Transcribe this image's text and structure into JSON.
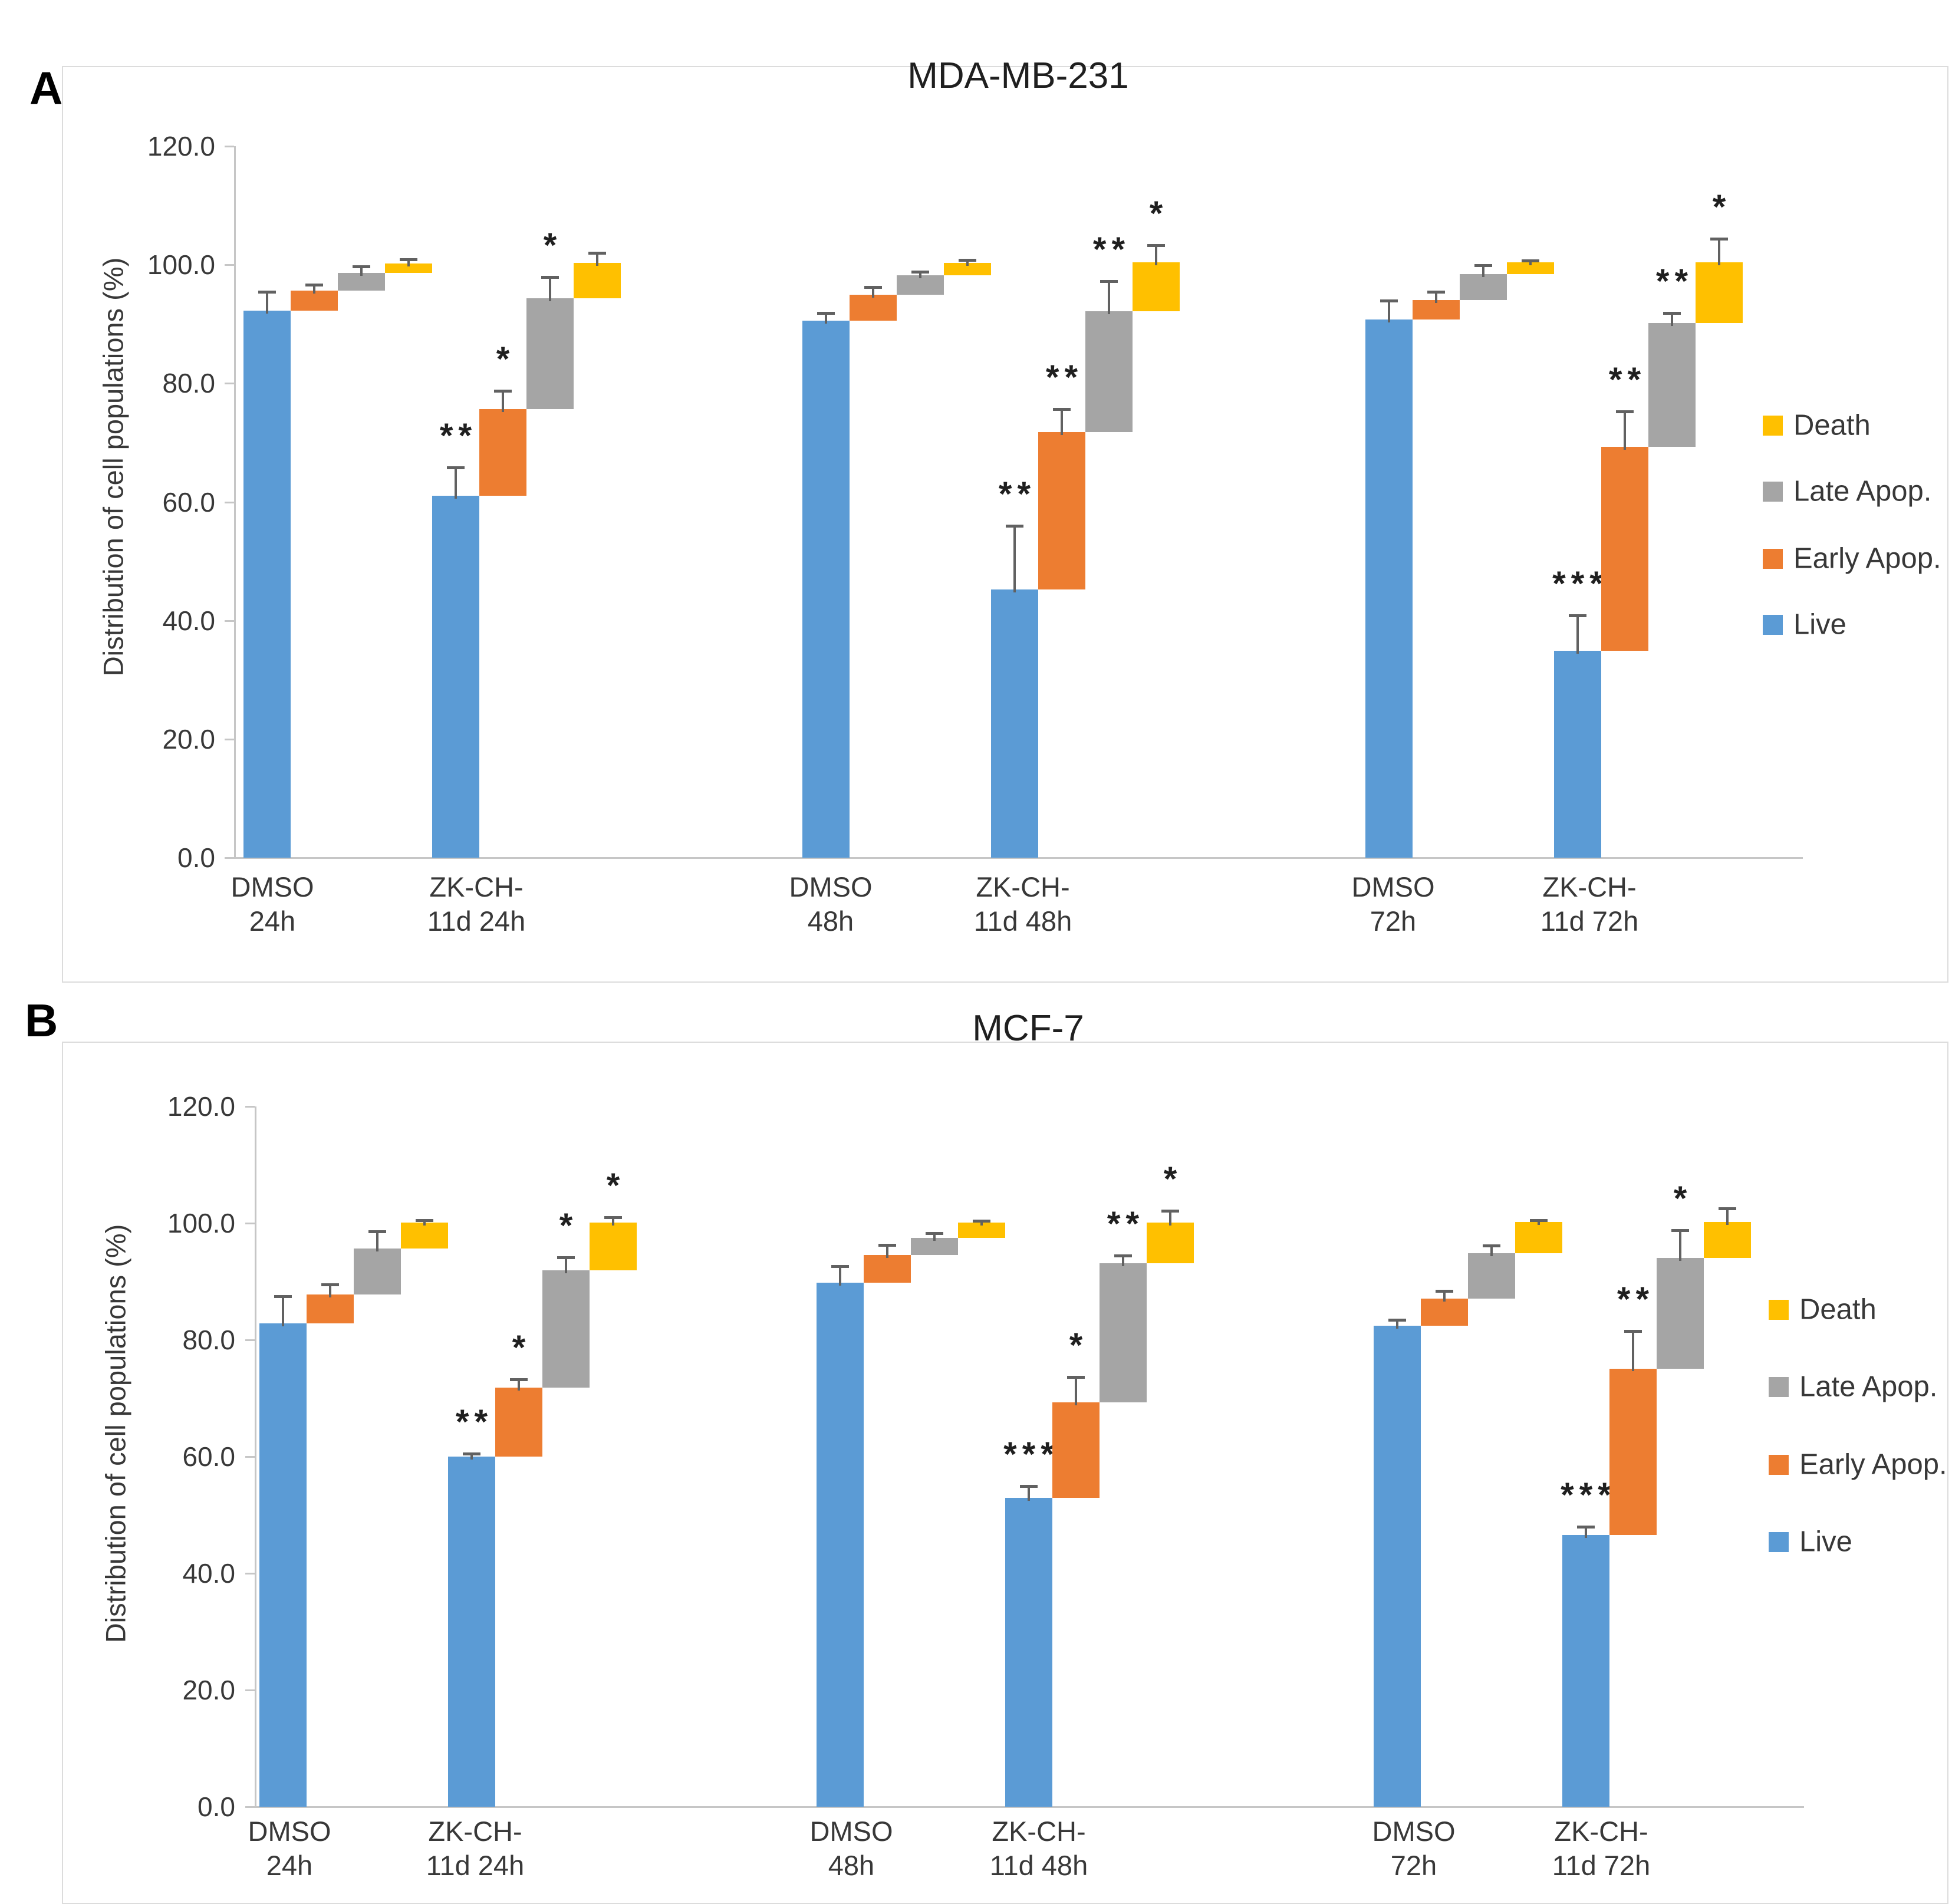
{
  "figure": {
    "panels": [
      {
        "letter": "A"
      },
      {
        "letter": "B"
      }
    ]
  },
  "colors": {
    "live": "#5B9BD5",
    "early_apop": "#ED7D31",
    "late_apop": "#A5A5A5",
    "death": "#FFC000",
    "error_bar": "#616161",
    "axis": "#C6C6C6",
    "text": "#383838",
    "title": "#1F1F1F",
    "panel_border": "#DCDCDC"
  },
  "legend": [
    {
      "label": "Death",
      "color_key": "death"
    },
    {
      "label": "Late Apop.",
      "color_key": "late_apop"
    },
    {
      "label": "Early Apop.",
      "color_key": "early_apop"
    },
    {
      "label": "Live",
      "color_key": "live"
    }
  ],
  "chart_data": [
    {
      "type": "bar",
      "subtype": "waterfall-stacked-segments-with-error-bars",
      "title": "MDA-MB-231",
      "ylabel": "Distribution of cell populations (%)",
      "xlabel": "",
      "ylim": [
        0,
        120
      ],
      "ytick_step": 20,
      "ytick_labels": [
        "0.0",
        "20.0",
        "40.0",
        "60.0",
        "80.0",
        "100.0",
        "120.0"
      ],
      "grid": false,
      "legend_position": "right",
      "categories": [
        [
          "DMSO",
          "24h"
        ],
        [
          "ZK-CH-",
          "11d 24h"
        ],
        [
          "DMSO",
          "48h"
        ],
        [
          "ZK-CH-",
          "11d 48h"
        ],
        [
          "DMSO",
          "72h"
        ],
        [
          "ZK-CH-",
          "11d 72h"
        ]
      ],
      "series": [
        {
          "name": "Live",
          "color_key": "live",
          "tops": [
            92.3,
            61.0,
            90.6,
            45.2,
            90.8,
            34.9
          ],
          "errors": [
            3.3,
            5.0,
            1.5,
            11.0,
            3.4,
            6.2
          ],
          "significance": [
            "",
            "**",
            "",
            "**",
            "",
            "***"
          ]
        },
        {
          "name": "Early Apop.",
          "color_key": "early_apop",
          "tops": [
            95.6,
            75.7,
            94.9,
            71.8,
            94.1,
            69.3
          ],
          "errors": [
            1.2,
            3.2,
            1.5,
            4.1,
            1.5,
            6.2
          ],
          "significance": [
            "",
            "*",
            "",
            "**",
            "",
            "**"
          ]
        },
        {
          "name": "Late Apop.",
          "color_key": "late_apop",
          "tops": [
            98.6,
            94.3,
            98.2,
            92.2,
            98.4,
            90.2
          ],
          "errors": [
            1.3,
            3.8,
            0.8,
            5.2,
            1.7,
            1.9
          ],
          "significance": [
            "",
            "*",
            "",
            "**",
            "",
            "**"
          ]
        },
        {
          "name": "Death",
          "color_key": "death",
          "tops": [
            100.2,
            100.3,
            100.3,
            100.4,
            100.4,
            100.4
          ],
          "errors": [
            0.9,
            1.9,
            0.7,
            3.1,
            0.5,
            4.2
          ],
          "significance": [
            "",
            "",
            "",
            "*",
            "",
            "*"
          ]
        }
      ]
    },
    {
      "type": "bar",
      "subtype": "waterfall-stacked-segments-with-error-bars",
      "title": "MCF-7",
      "ylabel": "Distribution of cell populations (%)",
      "xlabel": "",
      "ylim": [
        0,
        120
      ],
      "ytick_step": 20,
      "ytick_labels": [
        "0.0",
        "20.0",
        "40.0",
        "60.0",
        "80.0",
        "100.0",
        "120.0"
      ],
      "grid": false,
      "legend_position": "right",
      "categories": [
        [
          "DMSO",
          "24h"
        ],
        [
          "ZK-CH-",
          "11d 24h"
        ],
        [
          "DMSO",
          "48h"
        ],
        [
          "ZK-CH-",
          "11d 48h"
        ],
        [
          "DMSO",
          "72h"
        ],
        [
          "ZK-CH-",
          "11d 72h"
        ]
      ],
      "series": [
        {
          "name": "Live",
          "color_key": "live",
          "tops": [
            82.8,
            60.0,
            89.8,
            52.9,
            82.4,
            46.6
          ],
          "errors": [
            4.9,
            0.7,
            3.0,
            2.3,
            1.2,
            1.6
          ],
          "significance": [
            "",
            "**",
            "",
            "***",
            "",
            "***"
          ]
        },
        {
          "name": "Early Apop.",
          "color_key": "early_apop",
          "tops": [
            87.8,
            71.8,
            94.5,
            69.3,
            87.1,
            75.1
          ],
          "errors": [
            1.9,
            1.6,
            2.0,
            4.5,
            1.5,
            6.6
          ],
          "significance": [
            "",
            "*",
            "",
            "*",
            "",
            "**"
          ]
        },
        {
          "name": "Late Apop.",
          "color_key": "late_apop",
          "tops": [
            95.7,
            91.9,
            97.5,
            93.1,
            94.8,
            94.0
          ],
          "errors": [
            3.1,
            2.4,
            1.0,
            1.5,
            1.6,
            5.0
          ],
          "significance": [
            "",
            "*",
            "",
            "**",
            "",
            "*"
          ]
        },
        {
          "name": "Death",
          "color_key": "death",
          "tops": [
            100.1,
            100.1,
            100.1,
            100.1,
            100.2,
            100.2
          ],
          "errors": [
            0.6,
            1.1,
            0.5,
            2.2,
            0.5,
            2.5
          ],
          "significance": [
            "",
            "*",
            "",
            "*",
            "",
            ""
          ]
        }
      ]
    }
  ]
}
